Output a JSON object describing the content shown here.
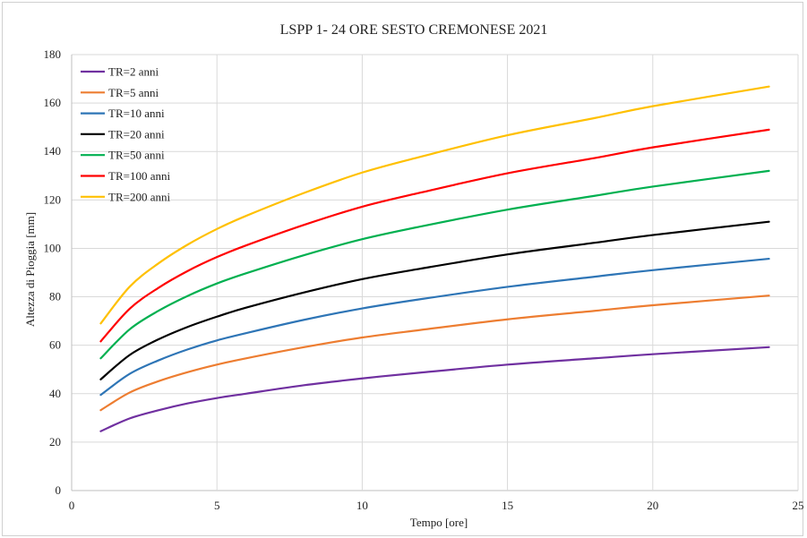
{
  "chart_data": {
    "type": "line",
    "title": "LSPP 1- 24 ORE  SESTO CREMONESE 2021",
    "xlabel": "Tempo [ore]",
    "ylabel": "Altezza di Pioggia [mm]",
    "xlim": [
      0,
      25
    ],
    "ylim": [
      0,
      180
    ],
    "xticks": [
      0,
      5,
      10,
      15,
      20,
      25
    ],
    "yticks": [
      0,
      20,
      40,
      60,
      80,
      100,
      120,
      140,
      160,
      180
    ],
    "grid": true,
    "legend_position": "top-left",
    "x": [
      1,
      2,
      3,
      4,
      5,
      6,
      8,
      10,
      12,
      15,
      18,
      20,
      24
    ],
    "series": [
      {
        "name": "TR=2 anni",
        "color": "#7030a0",
        "values": [
          24.5,
          29.8,
          33.2,
          36.0,
          38.2,
          40.0,
          43.5,
          46.3,
          48.7,
          52.0,
          54.6,
          56.3,
          59.2
        ]
      },
      {
        "name": "TR=5 anni",
        "color": "#ed7d31",
        "values": [
          33.2,
          40.5,
          45.2,
          48.9,
          52.0,
          54.6,
          59.2,
          63.2,
          66.3,
          70.7,
          74.2,
          76.5,
          80.5
        ]
      },
      {
        "name": "TR=10 anni",
        "color": "#2e75b6",
        "values": [
          39.5,
          48.2,
          53.8,
          58.3,
          62.0,
          65.0,
          70.5,
          75.2,
          79.0,
          84.1,
          88.3,
          91.0,
          95.7
        ]
      },
      {
        "name": "TR=20 anni",
        "color": "#000000",
        "values": [
          45.9,
          56.0,
          62.5,
          67.6,
          71.8,
          75.5,
          81.8,
          87.3,
          91.6,
          97.5,
          102.3,
          105.5,
          111.0
        ]
      },
      {
        "name": "TR=50 anni",
        "color": "#00b050",
        "values": [
          54.6,
          66.6,
          74.3,
          80.4,
          85.5,
          89.7,
          97.2,
          103.8,
          109.0,
          116.0,
          121.7,
          125.5,
          132.0
        ]
      },
      {
        "name": "TR=100 anni",
        "color": "#ff0000",
        "values": [
          61.6,
          75.1,
          83.8,
          90.7,
          96.4,
          101.2,
          109.7,
          117.2,
          123.0,
          131.0,
          137.3,
          141.7,
          149.0
        ]
      },
      {
        "name": "TR=200 anni",
        "color": "#ffc000",
        "values": [
          69.0,
          84.2,
          93.9,
          101.6,
          108.0,
          113.4,
          122.9,
          131.3,
          137.8,
          146.7,
          153.8,
          158.7,
          166.8
        ]
      }
    ]
  }
}
